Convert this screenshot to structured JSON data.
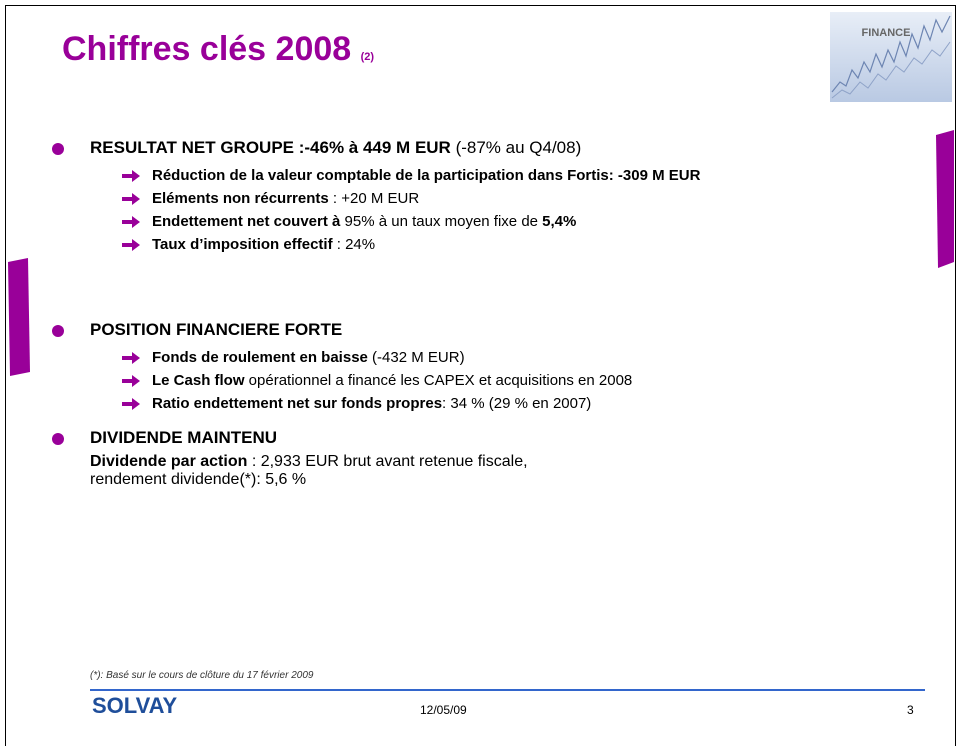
{
  "title": "Chiffres clés 2008",
  "title_note": "(2)",
  "badge": "FINANCE",
  "sections": [
    {
      "heading": [
        {
          "text": "RESULTAT NET GROUPE :-46% à 449 M EUR",
          "bold": true
        },
        {
          "text": " (-87% au Q4/08)",
          "bold": false
        }
      ],
      "items": [
        [
          {
            "text": "Réduction de la valeur comptable de la participation dans Fortis: -309 M EUR",
            "bold": true
          }
        ],
        [
          {
            "text": "Eléments non récurrents",
            "bold": true
          },
          {
            "text": " : +20 M EUR",
            "bold": false
          }
        ],
        [
          {
            "text": "Endettement net couvert à",
            "bold": true
          },
          {
            "text": " 95% à un taux moyen fixe de ",
            "bold": false
          },
          {
            "text": "5,4%",
            "bold": true
          }
        ],
        [
          {
            "text": "Taux d’imposition effectif",
            "bold": true
          },
          {
            "text": " : 24%",
            "bold": false
          }
        ]
      ]
    },
    {
      "heading": [
        {
          "text": "POSITION FINANCIERE FORTE",
          "bold": true
        }
      ],
      "items": [
        [
          {
            "text": "Fonds de roulement en baisse",
            "bold": true
          },
          {
            "text": " (-432 M EUR)",
            "bold": false
          }
        ],
        [
          {
            "text": "Le Cash flow",
            "bold": true
          },
          {
            "text": " opérationnel a financé les CAPEX et acquisitions en 2008",
            "bold": false
          }
        ],
        [
          {
            "text": "Ratio endettement net sur fonds propres",
            "bold": true
          },
          {
            "text": ": 34 % (29 % en 2007)",
            "bold": false
          }
        ]
      ]
    },
    {
      "heading": [
        {
          "text": "DIVIDENDE MAINTENU",
          "bold": true
        }
      ],
      "lines": [
        [
          {
            "text": "Dividende par action",
            "bold": true
          },
          {
            "text": " : 2,933 EUR brut avant retenue fiscale,",
            "bold": false
          }
        ],
        [
          {
            "text": "rendement dividende(*): 5,6 %",
            "bold": false
          }
        ]
      ]
    }
  ],
  "footnote": "(*): Basé sur le cours de clôture du 17 février 2009",
  "footer": {
    "brand": "SOLVAY",
    "date": "12/05/09",
    "page": "3"
  }
}
